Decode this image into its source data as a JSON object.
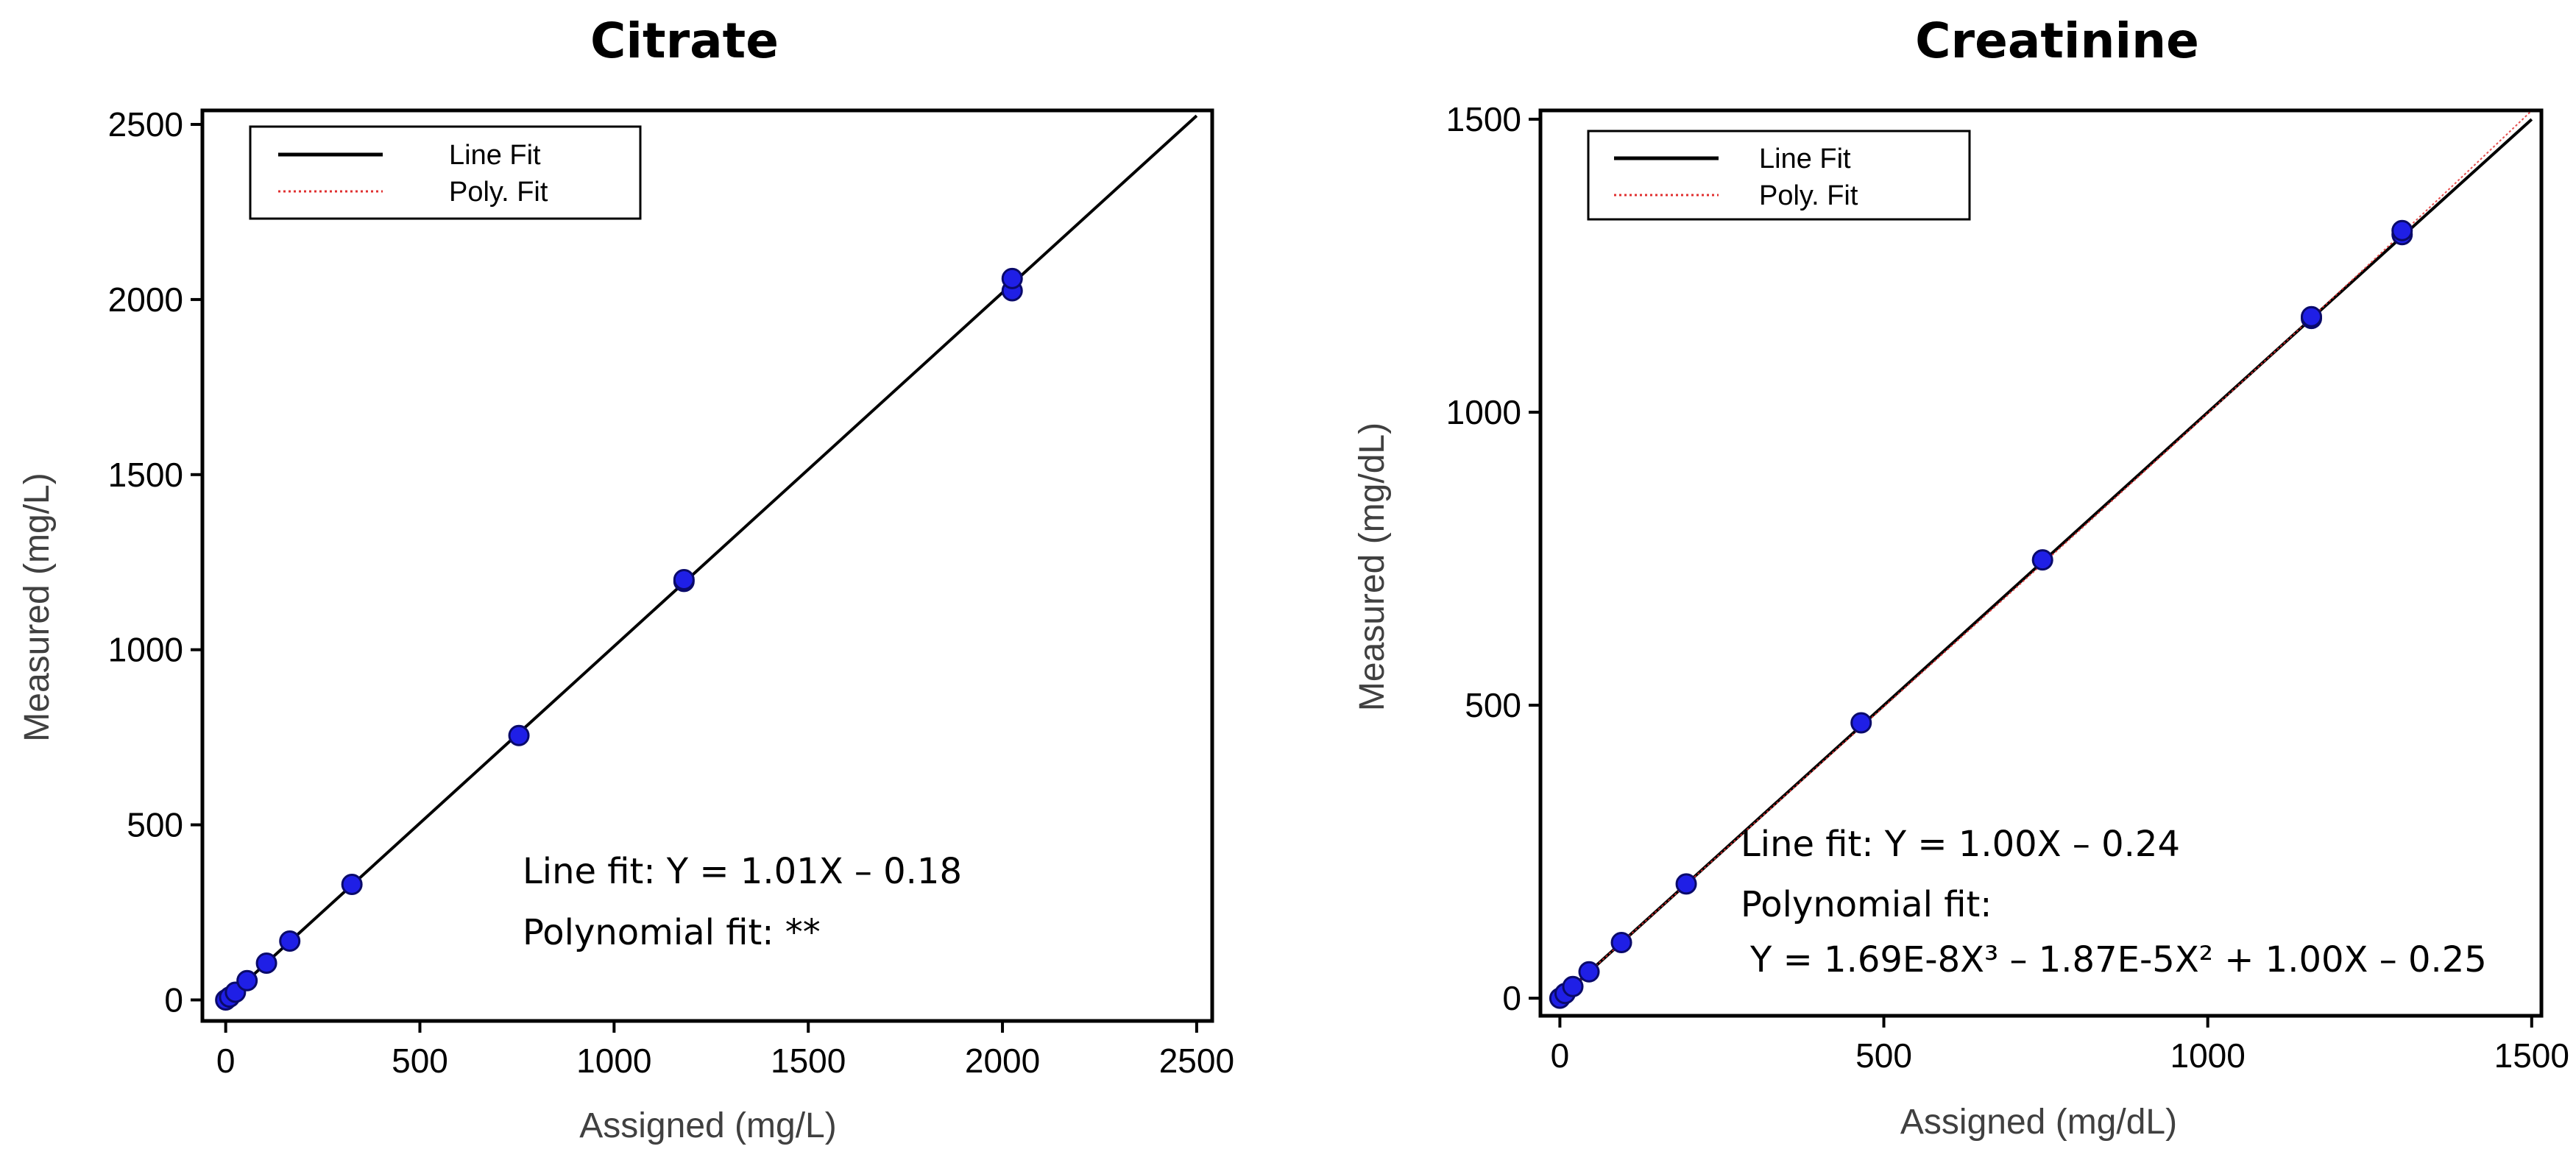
{
  "chart_data": [
    {
      "type": "scatter",
      "title": "Citrate",
      "xlabel": "Assigned (mg/L)",
      "ylabel": "Measured (mg/L)",
      "xlim": [
        -60,
        2540
      ],
      "ylim": [
        -60,
        2540
      ],
      "xticks": [
        0,
        500,
        1000,
        1500,
        2000,
        2500
      ],
      "yticks": [
        0,
        500,
        1000,
        1500,
        2000,
        2500
      ],
      "grid": false,
      "legend": {
        "position": "top-left",
        "entries": [
          {
            "label": "Line Fit",
            "color": "#000000",
            "style": "solid"
          },
          {
            "label": "Poly. Fit",
            "color": "#e03030",
            "style": "dotted"
          }
        ]
      },
      "points": [
        {
          "x": 0,
          "y": 0
        },
        {
          "x": 10,
          "y": 8
        },
        {
          "x": 25,
          "y": 22
        },
        {
          "x": 55,
          "y": 55
        },
        {
          "x": 105,
          "y": 105
        },
        {
          "x": 165,
          "y": 168
        },
        {
          "x": 325,
          "y": 330
        },
        {
          "x": 755,
          "y": 755
        },
        {
          "x": 1180,
          "y": 1195
        },
        {
          "x": 1180,
          "y": 1200
        },
        {
          "x": 2025,
          "y": 2025
        },
        {
          "x": 2025,
          "y": 2060
        }
      ],
      "line_fit": {
        "slope": 1.01,
        "intercept": -0.18,
        "x_range": [
          0,
          2500
        ]
      },
      "poly_fit": null,
      "annotations": [
        "Line fit: Y = 1.01X – 0.18",
        "Polynomial fit: **"
      ]
    },
    {
      "type": "scatter",
      "title": "Creatinine",
      "xlabel": "Assigned (mg/dL)",
      "ylabel": "Measured (mg/dL)",
      "xlim": [
        -30,
        1515
      ],
      "ylim": [
        -30,
        1515
      ],
      "xticks": [
        0,
        500,
        1000,
        1500
      ],
      "yticks": [
        0,
        500,
        1000,
        1500
      ],
      "grid": false,
      "legend": {
        "position": "top-left",
        "entries": [
          {
            "label": "Line Fit",
            "color": "#000000",
            "style": "solid"
          },
          {
            "label": "Poly. Fit",
            "color": "#e03030",
            "style": "dotted"
          }
        ]
      },
      "points": [
        {
          "x": 0,
          "y": 0
        },
        {
          "x": 8,
          "y": 8
        },
        {
          "x": 20,
          "y": 20
        },
        {
          "x": 45,
          "y": 45
        },
        {
          "x": 95,
          "y": 95
        },
        {
          "x": 195,
          "y": 195
        },
        {
          "x": 465,
          "y": 470
        },
        {
          "x": 745,
          "y": 748
        },
        {
          "x": 1160,
          "y": 1160
        },
        {
          "x": 1160,
          "y": 1163
        },
        {
          "x": 1300,
          "y": 1303
        },
        {
          "x": 1300,
          "y": 1310
        }
      ],
      "line_fit": {
        "slope": 1.0,
        "intercept": -0.24,
        "x_range": [
          0,
          1500
        ]
      },
      "poly_fit": {
        "coefficients": [
          1.69e-08,
          -1.87e-05,
          1.0,
          -0.25
        ],
        "x_range": [
          0,
          1500
        ]
      },
      "annotations": [
        "Line fit: Y = 1.00X – 0.24",
        "Polynomial fit:",
        "Y = 1.69E-8X³ – 1.87E-5X² + 1.00X – 0.25"
      ]
    }
  ],
  "style": {
    "point_fill": "#1f1fe6",
    "point_stroke": "#0a0a6a",
    "line_color": "#000000",
    "poly_color": "#e03030"
  }
}
